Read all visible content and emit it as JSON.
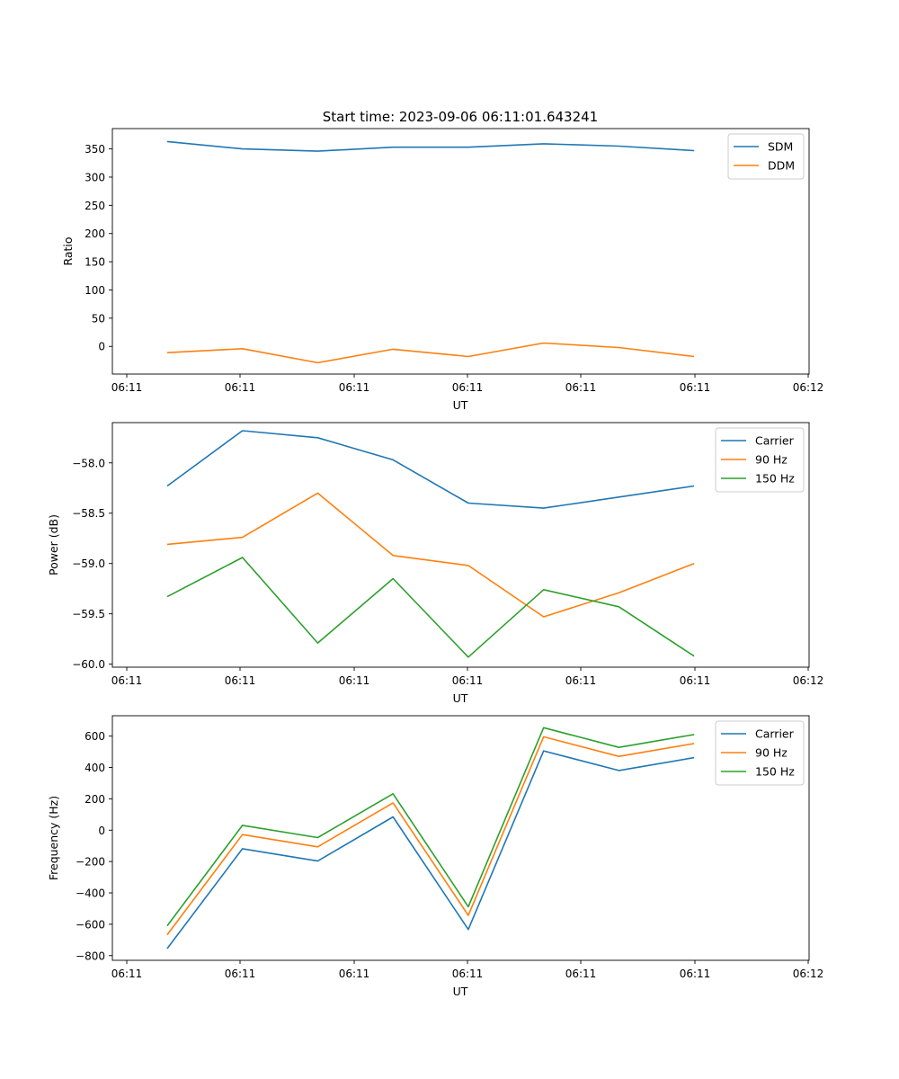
{
  "chart_data": [
    {
      "type": "line",
      "title": "Start time: 2023-09-06 06:11:01.643241",
      "xlabel": "UT",
      "ylabel": "Ratio",
      "x_tick_labels": [
        "06:11",
        "06:11",
        "06:11",
        "06:11",
        "06:11",
        "06:11",
        "06:11"
      ],
      "x_last_tick_label": "06:12",
      "ylim": [
        -49,
        386
      ],
      "y_ticks": [
        0,
        50,
        100,
        150,
        200,
        250,
        300,
        350
      ],
      "legend_position": "top-right",
      "grid": false,
      "x": [
        1,
        2,
        3,
        4,
        5,
        6,
        7,
        8
      ],
      "series": [
        {
          "name": "SDM",
          "color": "#1f77b4",
          "values": [
            363,
            350,
            346,
            353,
            353,
            359,
            355,
            347
          ]
        },
        {
          "name": "DDM",
          "color": "#ff7f0e",
          "values": [
            -11,
            -4,
            -29,
            -5,
            -18,
            6,
            -2,
            -18
          ]
        }
      ]
    },
    {
      "type": "line",
      "title": "",
      "xlabel": "UT",
      "ylabel": "Power (dB)",
      "x_tick_labels": [
        "06:11",
        "06:11",
        "06:11",
        "06:11",
        "06:11",
        "06:11",
        "06:11"
      ],
      "x_last_tick_label": "06:12",
      "ylim": [
        -60.03,
        -57.6
      ],
      "y_ticks": [
        -60.0,
        -59.5,
        -59.0,
        -58.5,
        -58.0
      ],
      "y_tick_labels": [
        "−60.0",
        "−59.5",
        "−59.0",
        "−58.5",
        "−58.0"
      ],
      "legend_position": "top-right",
      "grid": false,
      "x": [
        1,
        2,
        3,
        4,
        5,
        6,
        7,
        8
      ],
      "series": [
        {
          "name": "Carrier",
          "color": "#1f77b4",
          "values": [
            -58.23,
            -57.68,
            -57.75,
            -57.97,
            -58.4,
            -58.45,
            -58.34,
            -58.23
          ]
        },
        {
          "name": "90 Hz",
          "color": "#ff7f0e",
          "values": [
            -58.81,
            -58.74,
            -58.3,
            -58.92,
            -59.02,
            -59.53,
            -59.29,
            -59.0
          ]
        },
        {
          "name": "150 Hz",
          "color": "#2ca02c",
          "values": [
            -59.33,
            -58.94,
            -59.79,
            -59.15,
            -59.93,
            -59.26,
            -59.43,
            -59.92
          ]
        }
      ]
    },
    {
      "type": "line",
      "title": "",
      "xlabel": "UT",
      "ylabel": "Frequency (Hz)",
      "x_tick_labels": [
        "06:11",
        "06:11",
        "06:11",
        "06:11",
        "06:11",
        "06:11",
        "06:11"
      ],
      "x_last_tick_label": "06:12",
      "ylim": [
        -830,
        730
      ],
      "y_ticks": [
        -800,
        -600,
        -400,
        -200,
        0,
        200,
        400,
        600
      ],
      "y_tick_labels": [
        "−800",
        "−600",
        "−400",
        "−200",
        "0",
        "200",
        "400",
        "600"
      ],
      "legend_position": "top-right",
      "grid": false,
      "x": [
        1,
        2,
        3,
        4,
        5,
        6,
        7,
        8
      ],
      "series": [
        {
          "name": "Carrier",
          "color": "#1f77b4",
          "values": [
            -755,
            -118,
            -197,
            85,
            -633,
            506,
            381,
            463
          ]
        },
        {
          "name": "90 Hz",
          "color": "#ff7f0e",
          "values": [
            -667,
            -28,
            -106,
            174,
            -543,
            596,
            471,
            553
          ]
        },
        {
          "name": "150 Hz",
          "color": "#2ca02c",
          "values": [
            -610,
            31,
            -47,
            232,
            -488,
            654,
            528,
            610
          ]
        }
      ]
    }
  ]
}
